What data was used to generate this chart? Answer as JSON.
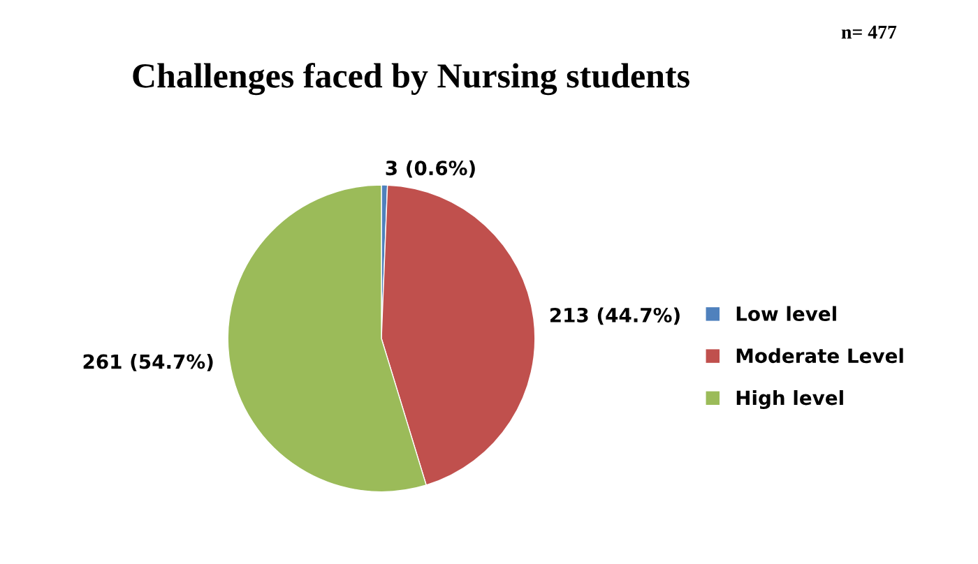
{
  "chart_data": {
    "type": "pie",
    "title": "Challenges faced by Nursing students",
    "categories": [
      "Low level",
      "Moderate Level",
      "High level"
    ],
    "values": [
      3,
      213,
      261
    ],
    "colors": [
      "#4f81bd",
      "#c0504d",
      "#9bbb59"
    ],
    "value_labels": [
      "3 (0.6%)",
      "213 (44.7%)",
      "261 (54.7%)"
    ],
    "annotations": [
      "n= 477"
    ],
    "legend": "right"
  }
}
